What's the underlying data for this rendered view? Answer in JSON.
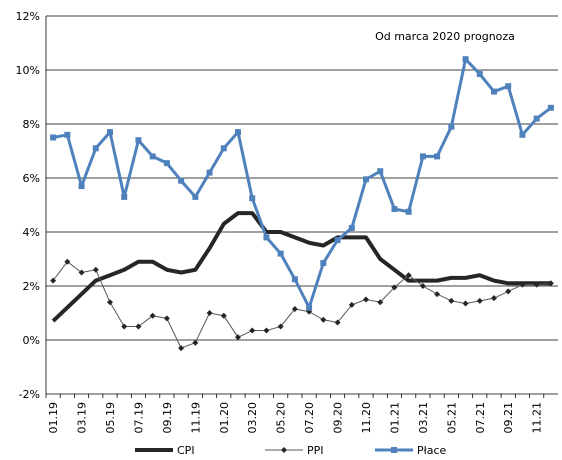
{
  "chart_data": {
    "type": "line",
    "annotation": "Od marca 2020 prognoza",
    "categories": [
      "01.19",
      null,
      "03.19",
      null,
      "05.19",
      null,
      "07.19",
      null,
      "09.19",
      null,
      "11.19",
      null,
      "01.20",
      null,
      "03.20",
      null,
      "05.20",
      null,
      "07.20",
      null,
      "09.20",
      null,
      "11.20",
      null,
      "01.21",
      null,
      "03.21",
      null,
      "05.21",
      null,
      "07.21",
      null,
      "09.21",
      null,
      "11.21",
      null
    ],
    "series": [
      {
        "name": "CPI",
        "color": "#262626",
        "values": [
          0.7,
          1.2,
          1.7,
          2.2,
          2.4,
          2.6,
          2.9,
          2.9,
          2.6,
          2.5,
          2.6,
          3.4,
          4.3,
          4.7,
          4.7,
          4.0,
          4.0,
          3.8,
          3.6,
          3.5,
          3.8,
          3.8,
          3.8,
          3.0,
          2.6,
          2.2,
          2.2,
          2.2,
          2.3,
          2.3,
          2.4,
          2.2,
          2.1,
          2.1,
          2.1,
          2.1
        ]
      },
      {
        "name": "PPI",
        "color": "#595959",
        "values": [
          2.2,
          2.9,
          2.5,
          2.6,
          1.4,
          0.5,
          0.5,
          0.9,
          0.8,
          -0.3,
          -0.1,
          1.0,
          0.9,
          0.1,
          0.35,
          0.35,
          0.5,
          1.15,
          1.05,
          0.75,
          0.65,
          1.3,
          1.5,
          1.4,
          1.95,
          2.4,
          2.0,
          1.7,
          1.45,
          1.35,
          1.45,
          1.55,
          1.8,
          2.05,
          2.05,
          2.1
        ]
      },
      {
        "name": "Płace",
        "color": "#4f81bd",
        "values": [
          7.5,
          7.6,
          5.7,
          7.1,
          7.7,
          5.3,
          7.4,
          6.8,
          6.55,
          5.9,
          5.3,
          6.2,
          7.1,
          7.7,
          5.25,
          3.8,
          3.2,
          2.25,
          1.2,
          2.85,
          3.7,
          4.15,
          5.95,
          6.25,
          4.85,
          4.75,
          6.8,
          6.8,
          7.9,
          10.4,
          9.85,
          9.2,
          9.4,
          7.6,
          8.2,
          8.6
        ]
      }
    ],
    "ylim": [
      -2,
      12
    ],
    "yticks": [
      {
        "value": -2,
        "label": "-2%"
      },
      {
        "value": 0,
        "label": "0%"
      },
      {
        "value": 2,
        "label": "2%"
      },
      {
        "value": 4,
        "label": "4%"
      },
      {
        "value": 6,
        "label": "6%"
      },
      {
        "value": 8,
        "label": "8%"
      },
      {
        "value": 10,
        "label": "10%"
      },
      {
        "value": 12,
        "label": "12%"
      }
    ],
    "grid": true,
    "legend": "bottom"
  }
}
